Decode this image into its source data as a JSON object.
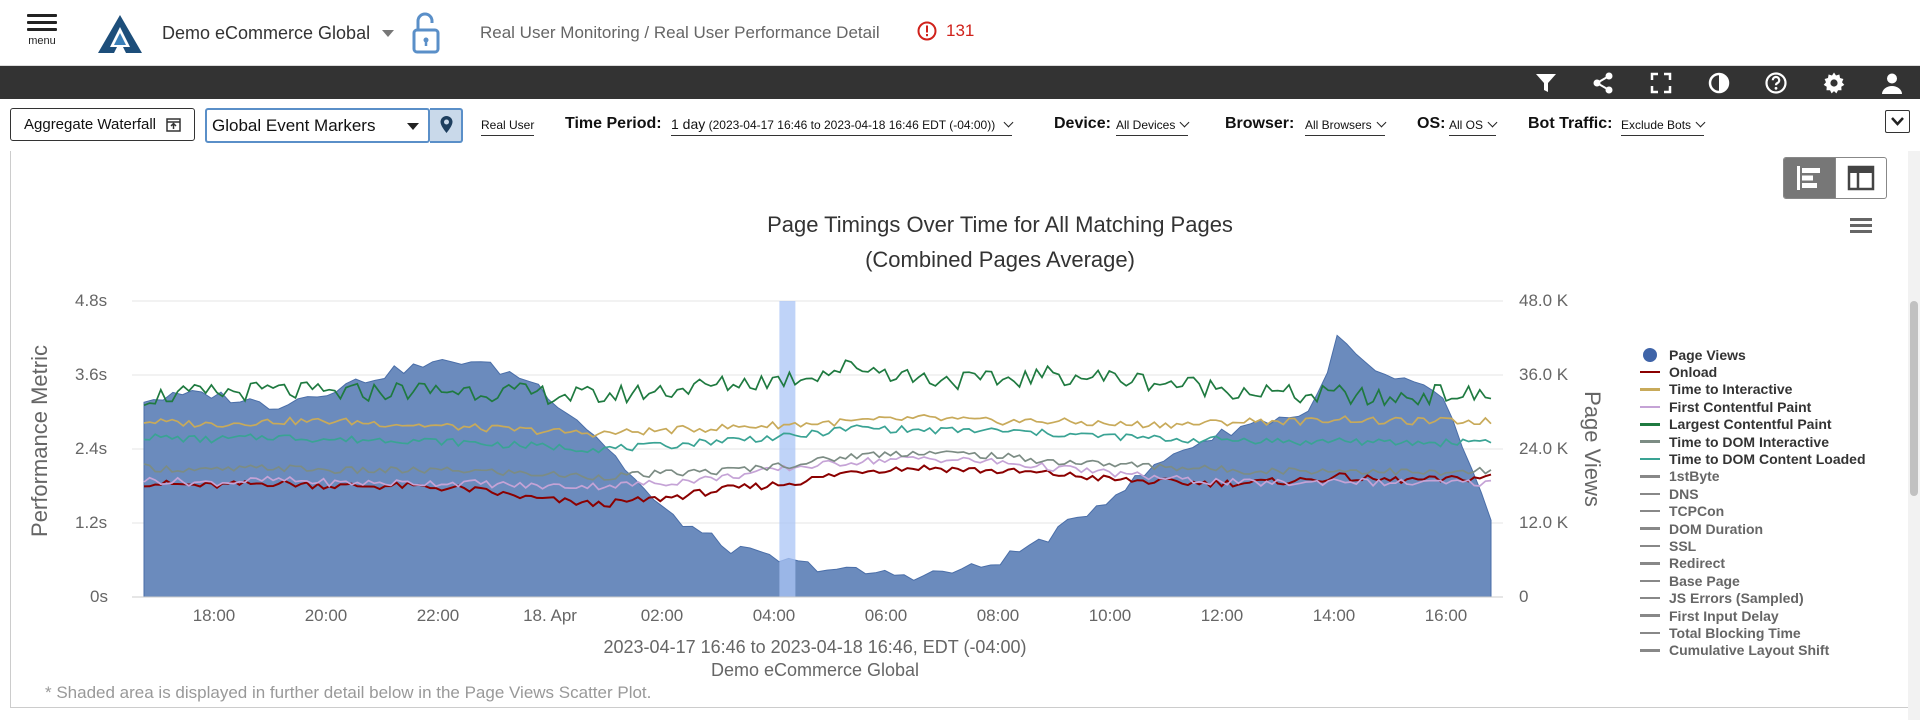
{
  "header": {
    "menu_label": "menu",
    "app_name": "Demo eCommerce Global",
    "breadcrumb": "Real User Monitoring / Real User Performance Detail",
    "alert_count": "131",
    "alert_color": "#d0221b"
  },
  "toolbar_icons": [
    "filter-icon",
    "share-icon",
    "fullscreen-icon",
    "contrast-icon",
    "help-icon",
    "settings-icon",
    "user-icon"
  ],
  "filters": {
    "aggregate_waterfall": "Aggregate Waterfall",
    "event_markers": "Global Event Markers",
    "real_user": "Real User",
    "time_period_label": "Time Period:",
    "time_period_main": "1 day",
    "time_period_range": "(2023-04-17 16:46 to 2023-04-18 16:46 EDT (-04:00))",
    "device_label": "Device:",
    "device_value": "All Devices",
    "browser_label": "Browser:",
    "browser_value": "All Browsers",
    "os_label": "OS:",
    "os_value": "All OS",
    "bot_label": "Bot Traffic:",
    "bot_value": "Exclude Bots"
  },
  "chart_data": {
    "type": "line",
    "title": "Page Timings Over Time for All Matching Pages",
    "subtitle": "(Combined Pages Average)",
    "ylabel": "Performance Metric",
    "ylabel_right": "Page Views",
    "x_caption": "2023-04-17 16:46 to 2023-04-18 16:46, EDT (-04:00)",
    "x_caption2": "Demo eCommerce Global",
    "footnote": "* Shaded area is displayed in further detail below in the Page Views Scatter Plot.",
    "ylim": [
      0,
      4.8
    ],
    "ylim_right": [
      0,
      48000
    ],
    "y_ticks": [
      "0s",
      "1.2s",
      "2.4s",
      "3.6s",
      "4.8s"
    ],
    "y_ticks_right": [
      "0",
      "12.0 K",
      "24.0 K",
      "36.0 K",
      "48.0 K"
    ],
    "x_ticks": [
      "18:00",
      "20:00",
      "22:00",
      "18. Apr",
      "02:00",
      "04:00",
      "06:00",
      "08:00",
      "10:00",
      "12:00",
      "14:00",
      "16:00"
    ],
    "x_hours": [
      -1.233,
      0,
      1.25,
      2.5,
      3.75,
      5,
      6.25,
      7.5,
      8.75,
      10,
      11.25,
      12.5,
      13.75,
      15,
      16.25,
      17.5,
      18.75,
      20,
      21.25,
      21.75,
      22.5,
      23.75,
      24.7
    ],
    "highlight_band_hours": [
      11.0,
      11.25
    ],
    "series": [
      {
        "name": "Page Views",
        "axis": "right",
        "kind": "area",
        "color": "#6b8bbd",
        "values": [
          32000,
          33000,
          31000,
          34000,
          37000,
          38500,
          35000,
          26000,
          14000,
          8000,
          5500,
          4000,
          3500,
          5000,
          10000,
          17000,
          24000,
          28000,
          30000,
          42000,
          36000,
          33000,
          12000
        ]
      },
      {
        "name": "Onload",
        "axis": "left",
        "kind": "line",
        "color": "#8b0000",
        "values": [
          1.85,
          1.8,
          1.85,
          1.8,
          1.8,
          1.75,
          1.6,
          1.5,
          1.6,
          1.75,
          1.85,
          2.05,
          2.1,
          2.05,
          2.0,
          1.9,
          1.85,
          1.85,
          1.9,
          1.95,
          1.9,
          1.9,
          1.95
        ]
      },
      {
        "name": "Time to Interactive",
        "axis": "left",
        "kind": "line",
        "color": "#c8aa5a",
        "values": [
          2.85,
          2.8,
          2.85,
          2.85,
          2.8,
          2.75,
          2.7,
          2.65,
          2.7,
          2.75,
          2.8,
          2.85,
          2.9,
          2.85,
          2.85,
          2.8,
          2.8,
          2.85,
          2.85,
          2.9,
          2.85,
          2.85,
          2.85
        ]
      },
      {
        "name": "First Contentful Paint",
        "axis": "left",
        "kind": "line",
        "color": "#c5a3d6",
        "values": [
          1.9,
          1.85,
          1.9,
          1.85,
          1.85,
          1.85,
          1.8,
          1.8,
          1.85,
          1.95,
          2.1,
          2.2,
          2.25,
          2.2,
          2.1,
          2.0,
          1.9,
          1.85,
          1.85,
          1.9,
          1.85,
          1.85,
          1.85
        ]
      },
      {
        "name": "Largest Contentful Paint",
        "axis": "left",
        "kind": "line",
        "color": "#1f7a40",
        "values": [
          3.25,
          3.3,
          3.35,
          3.3,
          3.35,
          3.35,
          3.3,
          3.25,
          3.35,
          3.45,
          3.55,
          3.75,
          3.55,
          3.5,
          3.6,
          3.55,
          3.45,
          3.35,
          3.25,
          3.3,
          3.2,
          3.3,
          3.25
        ]
      },
      {
        "name": "Time to DOM Interactive",
        "axis": "left",
        "kind": "line",
        "color": "#7c8c84",
        "values": [
          2.1,
          2.05,
          2.1,
          2.05,
          2.05,
          2.05,
          2.0,
          1.95,
          2.0,
          2.05,
          2.15,
          2.3,
          2.35,
          2.3,
          2.2,
          2.15,
          2.1,
          2.05,
          2.05,
          2.05,
          2.05,
          2.0,
          2.05
        ]
      },
      {
        "name": "Time to DOM Content Loaded",
        "axis": "left",
        "kind": "line",
        "color": "#3aa394",
        "values": [
          2.6,
          2.55,
          2.6,
          2.55,
          2.55,
          2.5,
          2.45,
          2.4,
          2.45,
          2.55,
          2.6,
          2.75,
          2.7,
          2.7,
          2.65,
          2.6,
          2.55,
          2.55,
          2.5,
          2.55,
          2.5,
          2.5,
          2.55
        ]
      }
    ],
    "legend": [
      {
        "name": "Page Views",
        "color": "#3f64a8",
        "marker": "dot",
        "active": true
      },
      {
        "name": "Onload",
        "color": "#8b0000",
        "marker": "line",
        "active": true
      },
      {
        "name": "Time to Interactive",
        "color": "#c8aa5a",
        "marker": "line",
        "active": true
      },
      {
        "name": "First Contentful Paint",
        "color": "#c5a3d6",
        "marker": "line",
        "active": true
      },
      {
        "name": "Largest Contentful Paint",
        "color": "#1f7a40",
        "marker": "line",
        "active": true
      },
      {
        "name": "Time to DOM Interactive",
        "color": "#7c8c84",
        "marker": "line",
        "active": true
      },
      {
        "name": "Time to DOM Content Loaded",
        "color": "#3aa394",
        "marker": "line",
        "active": true
      },
      {
        "name": "1stByte",
        "color": "#888888",
        "marker": "line",
        "active": false
      },
      {
        "name": "DNS",
        "color": "#888888",
        "marker": "line",
        "active": false
      },
      {
        "name": "TCPCon",
        "color": "#888888",
        "marker": "line",
        "active": false
      },
      {
        "name": "DOM Duration",
        "color": "#888888",
        "marker": "line",
        "active": false
      },
      {
        "name": "SSL",
        "color": "#888888",
        "marker": "line",
        "active": false
      },
      {
        "name": "Redirect",
        "color": "#888888",
        "marker": "line",
        "active": false
      },
      {
        "name": "Base Page",
        "color": "#888888",
        "marker": "line",
        "active": false
      },
      {
        "name": "JS Errors (Sampled)",
        "color": "#888888",
        "marker": "line",
        "active": false
      },
      {
        "name": "First Input Delay",
        "color": "#888888",
        "marker": "line",
        "active": false
      },
      {
        "name": "Total Blocking Time",
        "color": "#888888",
        "marker": "line",
        "active": false
      },
      {
        "name": "Cumulative Layout Shift",
        "color": "#888888",
        "marker": "line",
        "active": false
      }
    ]
  }
}
